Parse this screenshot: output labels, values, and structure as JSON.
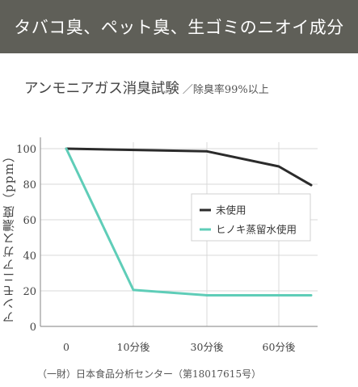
{
  "header": {
    "title": "タバコ臭、ペット臭、生ゴミのニオイ成分"
  },
  "source_note": "（一財）日本食品分析センター（第18017615号）",
  "colors": {
    "banner_bg": "#5f5f58",
    "series_1": "#2b2b2b",
    "series_2": "#5fcdb8",
    "grid": "#d9d9d9"
  },
  "chart_data": {
    "type": "line",
    "title": "アンモニアガス消臭試験",
    "subtitle": "／除臭率99%以上",
    "ylabel": "アンモニアガス濃度（ppm）",
    "xlabel": "",
    "ylim": [
      0,
      100
    ],
    "yticks": [
      0,
      20,
      40,
      60,
      80,
      100
    ],
    "x_ticks": [
      {
        "label": "0",
        "value": 0
      },
      {
        "label": "10分後",
        "value": 10
      },
      {
        "label": "30分後",
        "value": 30
      },
      {
        "label": "60分後",
        "value": 60
      }
    ],
    "grid": true,
    "legend_position": "center-right",
    "series": [
      {
        "name": "未使用",
        "color": "#2b2b2b",
        "points": [
          [
            0,
            100
          ],
          [
            30,
            98.5
          ],
          [
            60,
            90
          ],
          [
            80,
            79.5
          ]
        ]
      },
      {
        "name": "ヒノキ蒸留水使用",
        "color": "#5fcdb8",
        "points": [
          [
            0,
            100
          ],
          [
            10,
            20.5
          ],
          [
            30,
            17.5
          ],
          [
            80,
            17.5
          ]
        ]
      }
    ]
  }
}
